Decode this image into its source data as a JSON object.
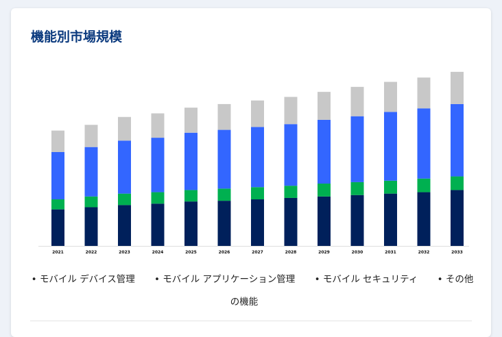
{
  "card": {
    "title": "機能別市場規模"
  },
  "legend": {
    "items": [
      "• モバイル デバイス管理",
      "• モバイル アプリケーション管理",
      "• モバイル セキュリティ",
      "• その他の機能"
    ]
  },
  "chart_data": {
    "type": "bar",
    "stacked": true,
    "categories": [
      "2021",
      "2022",
      "2023",
      "2024",
      "2025",
      "2026",
      "2027",
      "2028",
      "2029",
      "2030",
      "2031",
      "2032",
      "2033"
    ],
    "series": [
      {
        "name": "モバイル デバイス管理",
        "color": "#00205b",
        "values": [
          5.1,
          5.4,
          5.7,
          5.9,
          6.2,
          6.3,
          6.5,
          6.7,
          6.9,
          7.1,
          7.3,
          7.5,
          7.8
        ]
      },
      {
        "name": "モバイル アプリケーション管理",
        "color": "#00b050",
        "values": [
          1.4,
          1.5,
          1.6,
          1.6,
          1.6,
          1.7,
          1.7,
          1.7,
          1.8,
          1.8,
          1.8,
          1.9,
          1.9
        ]
      },
      {
        "name": "モバイル セキュリティ",
        "color": "#3366ff",
        "values": [
          6.6,
          6.9,
          7.4,
          7.6,
          8.0,
          8.2,
          8.4,
          8.6,
          8.9,
          9.2,
          9.6,
          9.8,
          10.1
        ]
      },
      {
        "name": "その他の機能",
        "color": "#c8c8c8",
        "values": [
          3.0,
          3.1,
          3.3,
          3.4,
          3.5,
          3.6,
          3.7,
          3.8,
          3.9,
          4.1,
          4.2,
          4.3,
          4.5
        ]
      }
    ],
    "ylim": [
      0,
      24
    ],
    "grid": false,
    "legend_position": "bottom"
  }
}
